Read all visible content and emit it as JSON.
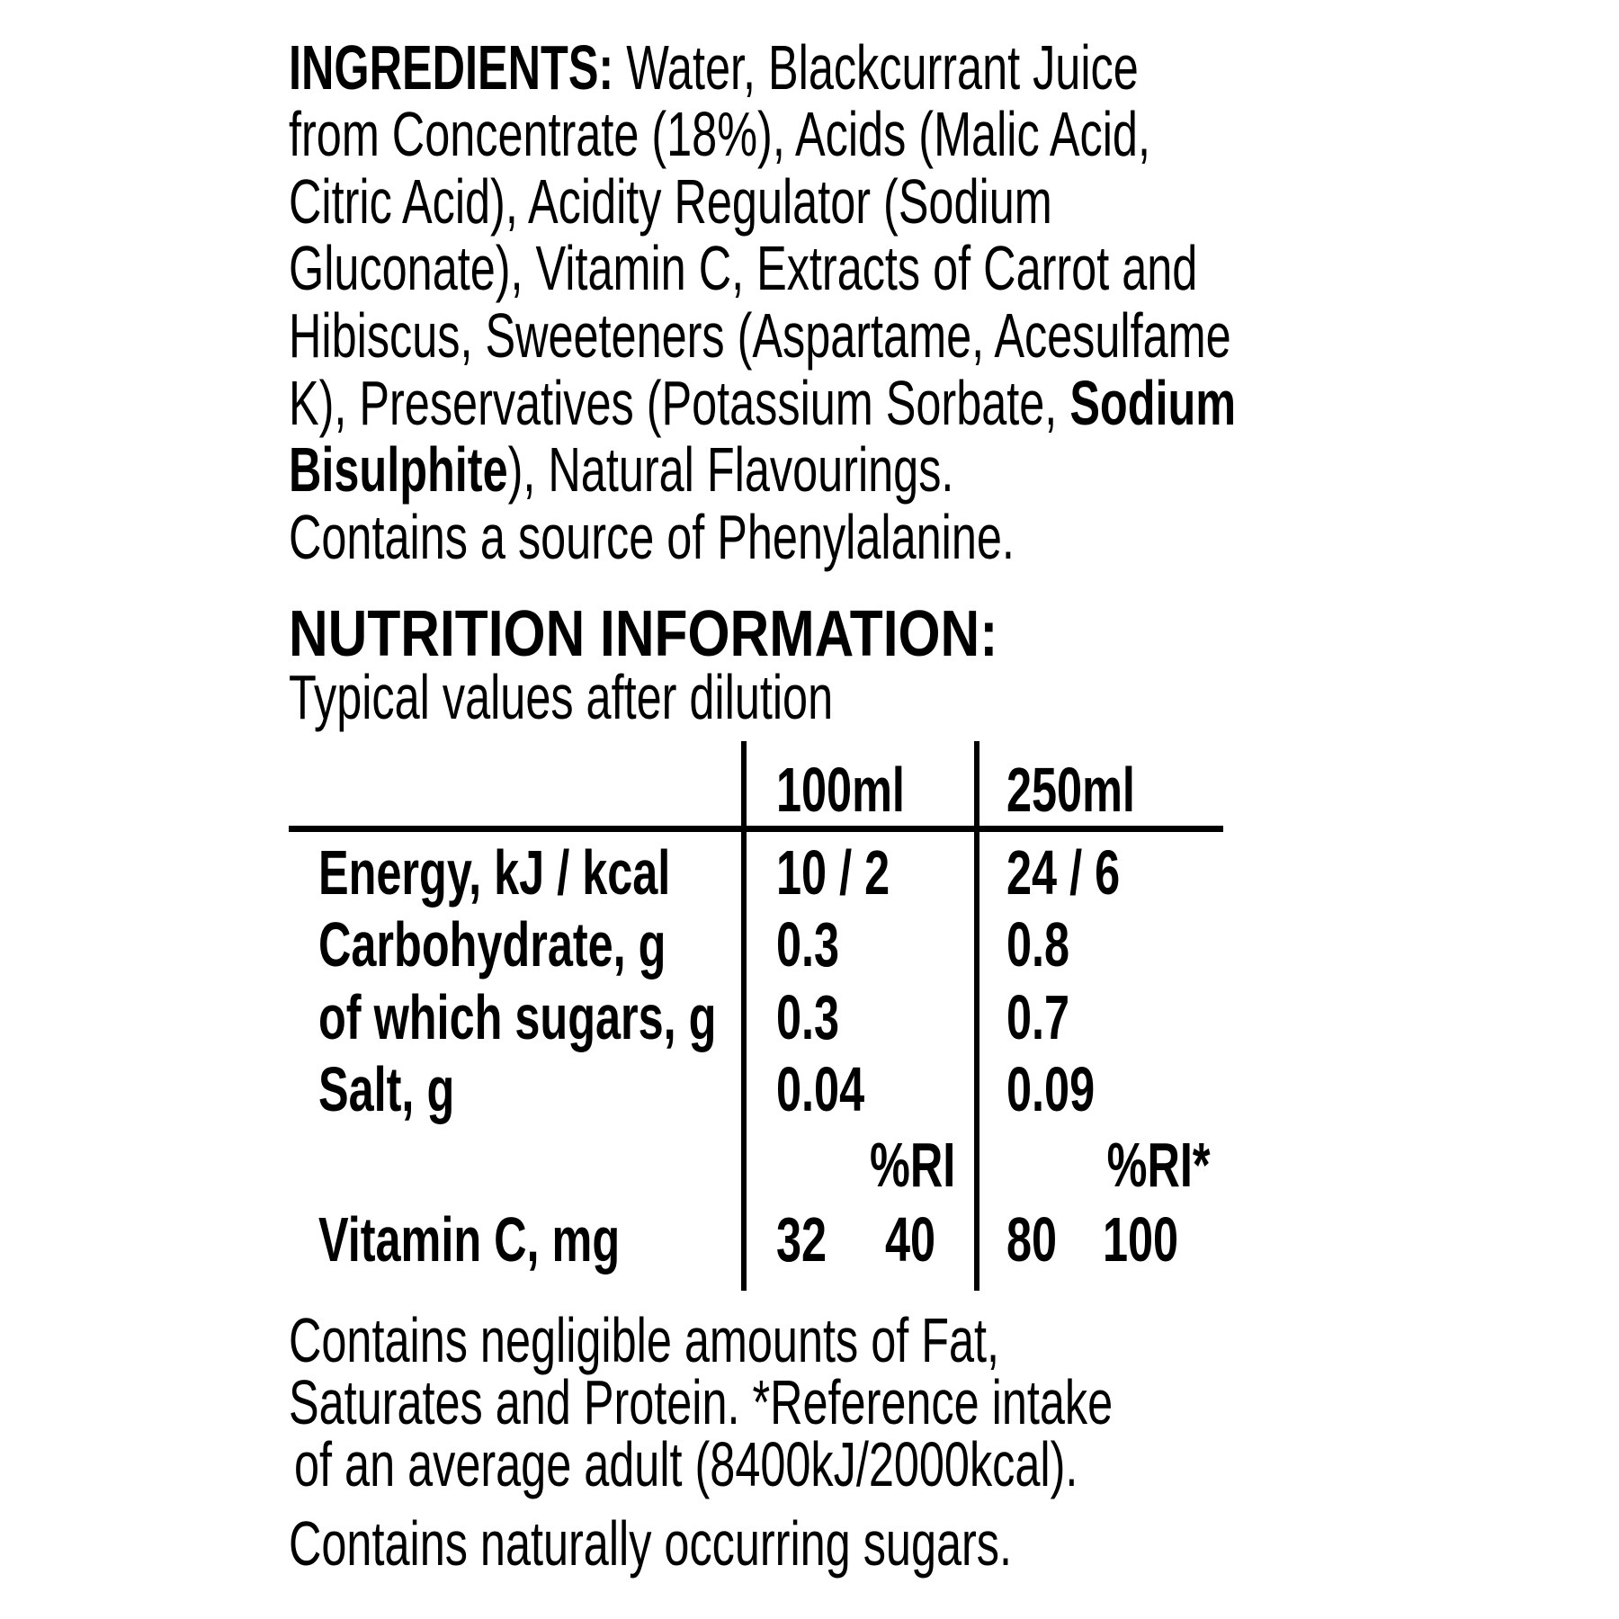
{
  "ingredients": {
    "heading": "INGREDIENTS:",
    "lines": [
      " Water, Blackcurrant Juice",
      "from Concentrate (18%), Acids (Malic Acid,",
      "Citric Acid), Acidity Regulator (Sodium",
      "Gluconate), Vitamin C, Extracts of Carrot and",
      "Hibiscus, Sweeteners (Aspartame, Acesulfame",
      "K), Preservatives (Potassium Sorbate, ",
      "), Natural Flavourings.",
      "Contains a source of Phenylalanine."
    ],
    "allergen_1": "Sodium",
    "allergen_2": "Bisulphite"
  },
  "nutrition": {
    "heading": "NUTRITION INFORMATION:",
    "subtitle": "Typical values after dilution",
    "columns": [
      "100ml",
      "250ml"
    ],
    "rows": [
      {
        "label": "Energy, kJ / kcal",
        "v100": "10 / 2",
        "v250": "24 / 6"
      },
      {
        "label": "Carbohydrate, g",
        "v100": "0.3",
        "v250": "0.8"
      },
      {
        "label": "of which sugars, g",
        "v100": "0.3",
        "v250": "0.7"
      },
      {
        "label": "Salt, g",
        "v100": "0.04",
        "v250": "0.09"
      }
    ],
    "ri_header_100": "%RI",
    "ri_header_250": "%RI*",
    "vitamin_c": {
      "label": "Vitamin C, mg",
      "v100": "32",
      "ri100": "40",
      "v250": "80",
      "ri250": "100"
    }
  },
  "footer": {
    "lines": [
      "Contains negligible amounts of Fat,",
      "Saturates and Protein. *Reference intake",
      "of an average adult (8400kJ/2000kcal)."
    ],
    "sugars_note": "Contains naturally occurring sugars."
  }
}
